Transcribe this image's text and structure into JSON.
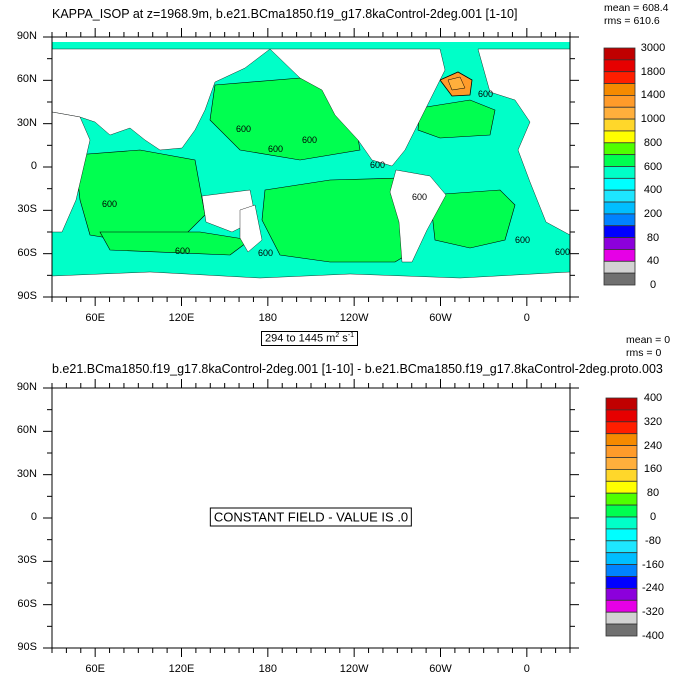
{
  "panels": [
    {
      "title": "KAPPA_ISOP at z=1968.9m, b.e21.BCma1850.f19_g17.8kaControl-2deg.001 [1-10]",
      "mean": "mean = 608.4",
      "rms": "rms = 610.6",
      "range_label": "294 to 1445 m",
      "range_unit_exp": "2",
      "range_unit2": " s",
      "range_unit2_exp": "-1",
      "colorbar_labels": [
        "3000",
        "1800",
        "1400",
        "1000",
        "800",
        "600",
        "400",
        "200",
        "80",
        "40",
        "0"
      ],
      "contour_labels": [
        "600",
        "600",
        "600",
        "600",
        "600",
        "600",
        "600",
        "600",
        "600",
        "600",
        "600"
      ]
    },
    {
      "title": "b.e21.BCma1850.f19_g17.8kaControl-2deg.001 [1-10] - b.e21.BCma1850.f19_g17.8kaControl-2deg.proto.003",
      "mean": "mean = 0",
      "rms": "rms = 0",
      "message": "CONSTANT FIELD - VALUE IS .0",
      "colorbar_labels": [
        "400",
        "320",
        "240",
        "160",
        "80",
        "0",
        "-80",
        "-160",
        "-240",
        "-320",
        "-400"
      ]
    }
  ],
  "lat_labels": [
    "90N",
    "60N",
    "30N",
    "0",
    "30S",
    "60S",
    "90S"
  ],
  "lon_labels": [
    "60E",
    "120E",
    "180",
    "120W",
    "60W",
    "0"
  ],
  "colorbar_colors": [
    "#C00000",
    "#E60000",
    "#FF1E00",
    "#F58A00",
    "#FF9B2A",
    "#FFAF3C",
    "#FFD72A",
    "#FFFF00",
    "#50FF00",
    "#00FF50",
    "#00FFC8",
    "#00FFFF",
    "#1EE6FF",
    "#00BEFF",
    "#0082FF",
    "#0000FF",
    "#8C00DC",
    "#E600E6",
    "#D2D2D2",
    "#707070"
  ]
}
